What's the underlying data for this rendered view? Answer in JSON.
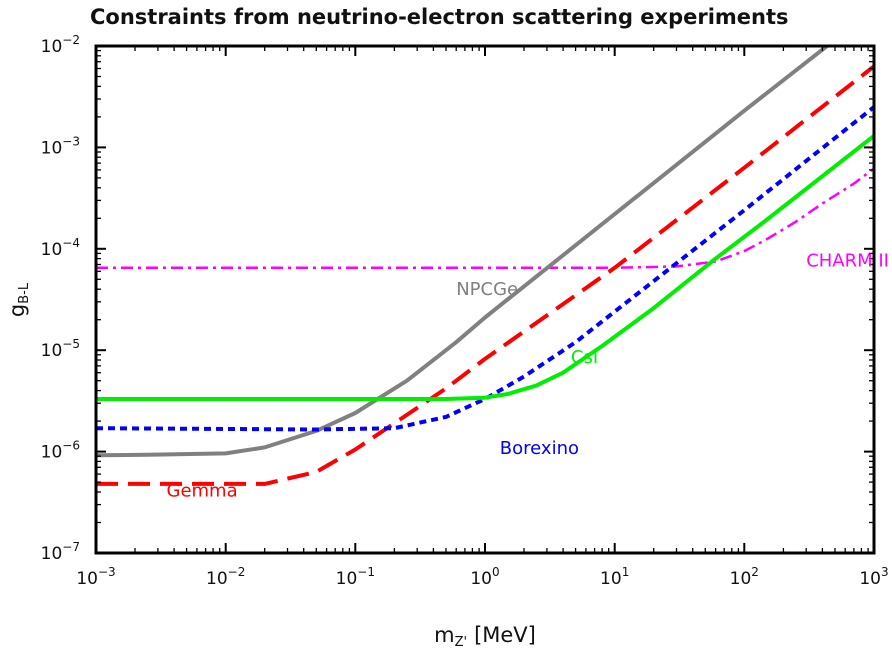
{
  "chart_data": {
    "type": "line",
    "title": "Constraints from neutrino-electron scattering experiments",
    "xlabel": "m",
    "xlabel_sub": "Z'",
    "xlabel_unit": "[MeV]",
    "ylabel": "g",
    "ylabel_sub": "B-L",
    "xscale": "log",
    "yscale": "log",
    "xlim": [
      0.001,
      1000
    ],
    "ylim": [
      1e-07,
      0.01
    ],
    "grid": false,
    "x_ticks": [
      {
        "base": "10",
        "exp": "−3",
        "value": 0.001
      },
      {
        "base": "10",
        "exp": "−2",
        "value": 0.01
      },
      {
        "base": "10",
        "exp": "−1",
        "value": 0.1
      },
      {
        "base": "10",
        "exp": "0",
        "value": 1
      },
      {
        "base": "10",
        "exp": "1",
        "value": 10
      },
      {
        "base": "10",
        "exp": "2",
        "value": 100
      },
      {
        "base": "10",
        "exp": "3",
        "value": 1000
      }
    ],
    "y_ticks": [
      {
        "base": "10",
        "exp": "−7",
        "value": 1e-07
      },
      {
        "base": "10",
        "exp": "−6",
        "value": 1e-06
      },
      {
        "base": "10",
        "exp": "−5",
        "value": 1e-05
      },
      {
        "base": "10",
        "exp": "−4",
        "value": 0.0001
      },
      {
        "base": "10",
        "exp": "−3",
        "value": 0.001
      },
      {
        "base": "10",
        "exp": "−2",
        "value": 0.01
      }
    ],
    "series": [
      {
        "name": "CHARM II",
        "color": "#ff00ff",
        "style": "dashdot",
        "label_at": [
          300,
          6.7e-05
        ],
        "points": [
          [
            0.001,
            6.5e-05
          ],
          [
            1,
            6.5e-05
          ],
          [
            10,
            6.5e-05
          ],
          [
            30,
            6.7e-05
          ],
          [
            60,
            7.5e-05
          ],
          [
            100,
            9.5e-05
          ],
          [
            150,
            0.000125
          ],
          [
            250,
            0.000185
          ],
          [
            400,
            0.00028
          ],
          [
            700,
            0.00044
          ],
          [
            1000,
            0.00062
          ]
        ]
      },
      {
        "name": "NPCGe",
        "color": "#808080",
        "style": "solid",
        "label_at": [
          0.6,
          3.5e-05
        ],
        "points": [
          [
            0.001,
            9.2e-07
          ],
          [
            0.0025,
            9.3e-07
          ],
          [
            0.01,
            9.6e-07
          ],
          [
            0.02,
            1.1e-06
          ],
          [
            0.05,
            1.6e-06
          ],
          [
            0.1,
            2.4e-06
          ],
          [
            0.25,
            5e-06
          ],
          [
            0.6,
            1.2e-05
          ],
          [
            1,
            2.1e-05
          ],
          [
            10,
            0.00022
          ],
          [
            100,
            0.0023
          ],
          [
            500,
            0.0115
          ]
        ]
      },
      {
        "name": "Gemma",
        "color": "#ff0000",
        "style": "dashed",
        "label_at": [
          0.0035,
          3.6e-07
        ],
        "points": [
          [
            0.001,
            4.8e-07
          ],
          [
            0.01,
            4.8e-07
          ],
          [
            0.02,
            4.8e-07
          ],
          [
            0.05,
            6.3e-07
          ],
          [
            0.1,
            1.05e-06
          ],
          [
            0.3,
            2.7e-06
          ],
          [
            0.5,
            4.2e-06
          ],
          [
            1,
            8.2e-06
          ],
          [
            10,
            6.5e-05
          ],
          [
            100,
            0.00063
          ],
          [
            1000,
            0.0063
          ]
        ]
      },
      {
        "name": "Borexino",
        "color": "#0000ff",
        "style": "dotted",
        "label_at": [
          1.3,
          9.5e-07
        ],
        "points": [
          [
            0.001,
            1.7e-06
          ],
          [
            0.05,
            1.65e-06
          ],
          [
            0.2,
            1.7e-06
          ],
          [
            0.5,
            2.2e-06
          ],
          [
            1,
            3.3e-06
          ],
          [
            2,
            5.5e-06
          ],
          [
            5,
            1.2e-05
          ],
          [
            10,
            2.4e-05
          ],
          [
            100,
            0.00024
          ],
          [
            1000,
            0.0025
          ]
        ]
      },
      {
        "name": "CsI",
        "color": "#00ee00",
        "style": "solid",
        "label_at": [
          4.6,
          7.5e-06
        ],
        "points": [
          [
            0.001,
            3.3e-06
          ],
          [
            0.5,
            3.3e-06
          ],
          [
            1,
            3.4e-06
          ],
          [
            1.5,
            3.7e-06
          ],
          [
            2.5,
            4.5e-06
          ],
          [
            4,
            6e-06
          ],
          [
            8,
            1.1e-05
          ],
          [
            20,
            2.6e-05
          ],
          [
            60,
            8e-05
          ],
          [
            150,
            0.000195
          ],
          [
            1000,
            0.0013
          ]
        ]
      }
    ]
  }
}
